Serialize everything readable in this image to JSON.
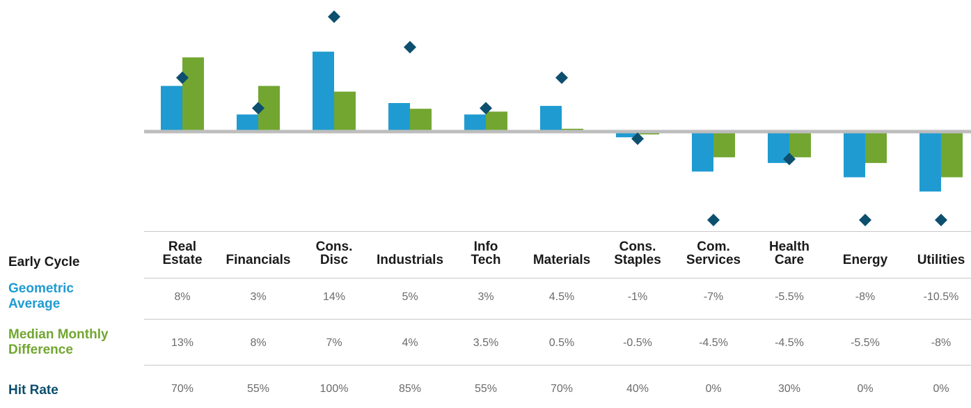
{
  "colors": {
    "geometric": "#1f9bd1",
    "median": "#72a631",
    "hit_rate": "#0d4f6e",
    "baseline": "#bdbdbd"
  },
  "table": {
    "corner_label": "Early Cycle",
    "row_labels": {
      "geometric": [
        "Geometric",
        "Average"
      ],
      "median": [
        "Median Monthly",
        "Difference"
      ],
      "hit_rate": [
        "Hit Rate"
      ]
    },
    "columns": [
      {
        "label": [
          "Real",
          "Estate"
        ],
        "geometric": "8%",
        "median": "13%",
        "hit_rate": "70%"
      },
      {
        "label": [
          "Financials"
        ],
        "geometric": "3%",
        "median": "8%",
        "hit_rate": "55%"
      },
      {
        "label": [
          "Cons.",
          "Disc"
        ],
        "geometric": "14%",
        "median": "7%",
        "hit_rate": "100%"
      },
      {
        "label": [
          "Industrials"
        ],
        "geometric": "5%",
        "median": "4%",
        "hit_rate": "85%"
      },
      {
        "label": [
          "Info",
          "Tech"
        ],
        "geometric": "3%",
        "median": "3.5%",
        "hit_rate": "55%"
      },
      {
        "label": [
          "Materials"
        ],
        "geometric": "4.5%",
        "median": "0.5%",
        "hit_rate": "70%"
      },
      {
        "label": [
          "Cons.",
          "Staples"
        ],
        "geometric": "-1%",
        "median": "-0.5%",
        "hit_rate": "40%"
      },
      {
        "label": [
          "Com.",
          "Services"
        ],
        "geometric": "-7%",
        "median": "-4.5%",
        "hit_rate": "0%"
      },
      {
        "label": [
          "Health",
          "Care"
        ],
        "geometric": "-5.5%",
        "median": "-4.5%",
        "hit_rate": "30%"
      },
      {
        "label": [
          "Energy"
        ],
        "geometric": "-8%",
        "median": "-5.5%",
        "hit_rate": "0%"
      },
      {
        "label": [
          "Utilities"
        ],
        "geometric": "-10.5%",
        "median": "-8%",
        "hit_rate": "0%"
      }
    ]
  },
  "chart_data": {
    "type": "bar",
    "categories": [
      "Real Estate",
      "Financials",
      "Cons. Disc",
      "Industrials",
      "Info Tech",
      "Materials",
      "Cons. Staples",
      "Com. Services",
      "Health Care",
      "Energy",
      "Utilities"
    ],
    "series": [
      {
        "name": "Geometric Average",
        "kind": "bar",
        "values": [
          8,
          3,
          14,
          5,
          3,
          4.5,
          -1,
          -7,
          -5.5,
          -8,
          -10.5
        ]
      },
      {
        "name": "Median Monthly Difference",
        "kind": "bar",
        "values": [
          13,
          8,
          7,
          4,
          3.5,
          0.5,
          -0.5,
          -4.5,
          -4.5,
          -5.5,
          -8
        ]
      },
      {
        "name": "Hit Rate",
        "kind": "marker",
        "marker": "diamond",
        "values": [
          70,
          55,
          100,
          85,
          55,
          70,
          40,
          0,
          30,
          0,
          0
        ]
      }
    ],
    "bar_axis_range": [
      -14,
      14.5
    ],
    "marker_axis_range": [
      0,
      100
    ],
    "grid": false,
    "legend": "none"
  }
}
